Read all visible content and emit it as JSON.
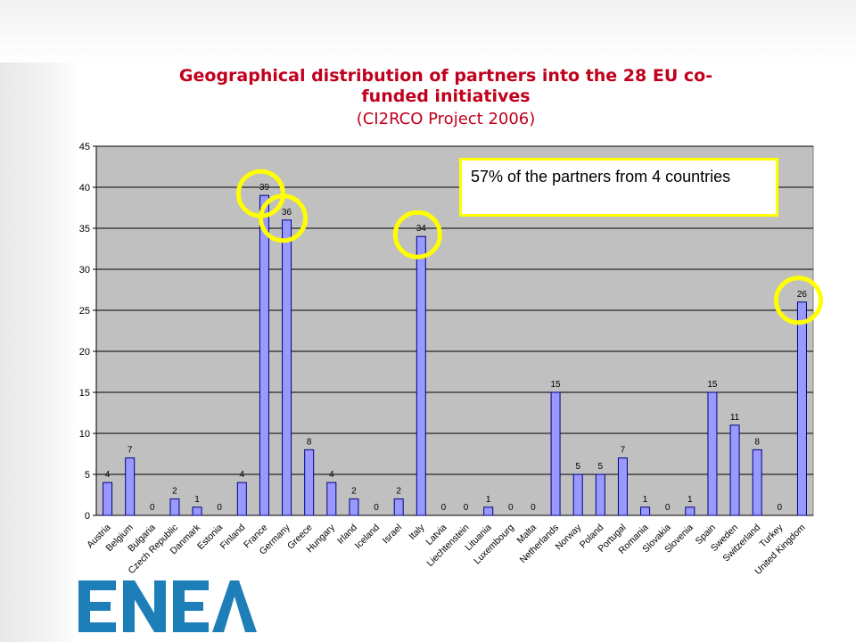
{
  "title": "Geographical distribution of partners into the 28 EU co-funded initiatives",
  "title_lines": [
    "Geographical distribution of partners into the 28 EU co-",
    "funded initiatives"
  ],
  "subtitle": "(CI2RCO Project 2006)",
  "annotation": "57% of the partners from 4 countries",
  "logo_text": "ENEA",
  "colors": {
    "title": "#c0001c",
    "bar": "#9999ff",
    "plot_bg": "#c0c0c0",
    "highlight": "#ffff00",
    "logo": "#1e7fb8"
  },
  "chart_data": {
    "type": "bar",
    "categories": [
      "Austria",
      "Belgium",
      "Bulgaria",
      "Czech Republic",
      "Danmark",
      "Estonia",
      "Finland",
      "France",
      "Germany",
      "Greece",
      "Hungary",
      "Irland",
      "Iceland",
      "Israel",
      "Italy",
      "Latvia",
      "Liechtenstein",
      "Lituania",
      "Luxembourg",
      "Malta",
      "Netherlands",
      "Norway",
      "Poland",
      "Portugal",
      "Romania",
      "Slovakia",
      "Slovenia",
      "Spain",
      "Sweden",
      "Switzerland",
      "Turkey",
      "United Kingdom"
    ],
    "values": [
      4,
      7,
      0,
      2,
      1,
      0,
      4,
      39,
      36,
      8,
      4,
      2,
      0,
      2,
      34,
      0,
      0,
      1,
      0,
      0,
      15,
      5,
      5,
      7,
      1,
      0,
      1,
      15,
      11,
      8,
      0,
      26
    ],
    "ylim": [
      0,
      45
    ],
    "yticks": [
      0,
      5,
      10,
      15,
      20,
      25,
      30,
      35,
      40,
      45
    ],
    "grid": true,
    "data_labels": true,
    "xlabel": "",
    "ylabel": "",
    "highlighted": [
      "France",
      "Germany",
      "Italy",
      "United Kingdom"
    ]
  }
}
